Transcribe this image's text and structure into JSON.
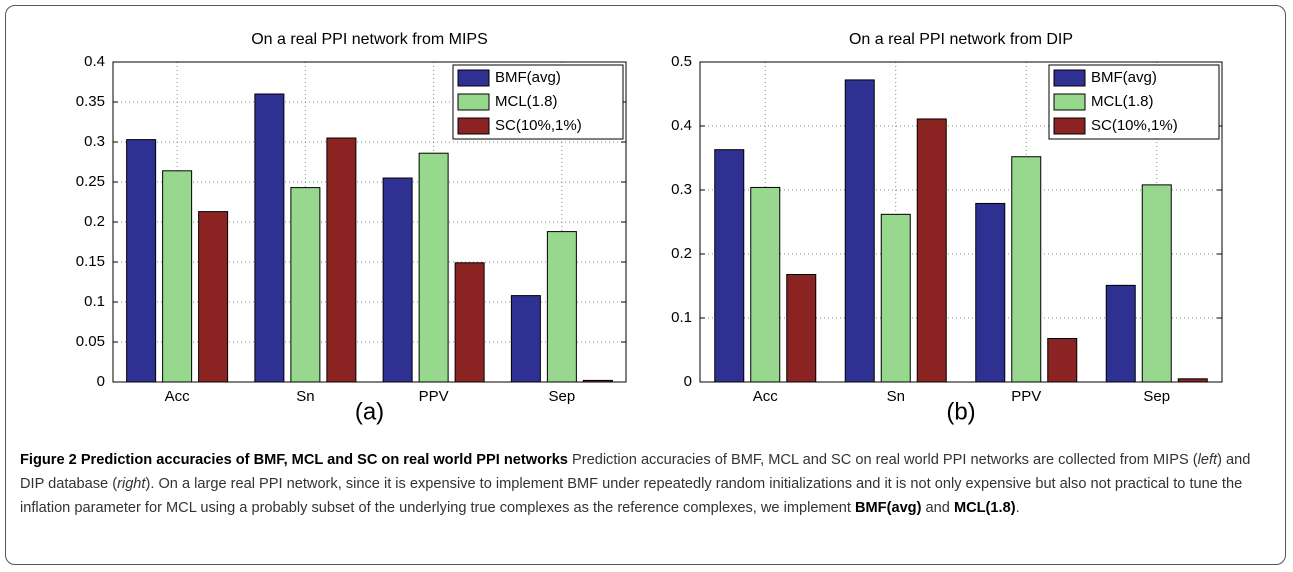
{
  "chart_data": [
    {
      "type": "bar",
      "title": "On a real PPI network from MIPS",
      "panel_label": "(a)",
      "categories": [
        "Acc",
        "Sn",
        "PPV",
        "Sep"
      ],
      "series": [
        {
          "name": "BMF(avg)",
          "color": "#2e3192",
          "values": [
            0.303,
            0.36,
            0.255,
            0.108
          ]
        },
        {
          "name": "MCL(1.8)",
          "color": "#98d88e",
          "values": [
            0.264,
            0.243,
            0.286,
            0.188
          ]
        },
        {
          "name": "SC(10%,1%)",
          "color": "#8b2323",
          "values": [
            0.213,
            0.305,
            0.149,
            0.002
          ]
        }
      ],
      "ylim": [
        0,
        0.4
      ],
      "yticks": [
        0,
        0.05,
        0.1,
        0.15,
        0.2,
        0.25,
        0.3,
        0.35,
        0.4
      ],
      "grid": true,
      "legend": "upper right"
    },
    {
      "type": "bar",
      "title": "On a real PPI network from DIP",
      "panel_label": "(b)",
      "categories": [
        "Acc",
        "Sn",
        "PPV",
        "Sep"
      ],
      "series": [
        {
          "name": "BMF(avg)",
          "color": "#2e3192",
          "values": [
            0.363,
            0.472,
            0.279,
            0.151
          ]
        },
        {
          "name": "MCL(1.8)",
          "color": "#98d88e",
          "values": [
            0.304,
            0.262,
            0.352,
            0.308
          ]
        },
        {
          "name": "SC(10%,1%)",
          "color": "#8b2323",
          "values": [
            0.168,
            0.411,
            0.068,
            0.005
          ]
        }
      ],
      "ylim": [
        0,
        0.5
      ],
      "yticks": [
        0,
        0.1,
        0.2,
        0.3,
        0.4,
        0.5
      ],
      "grid": true,
      "legend": "upper right"
    }
  ],
  "caption": [
    "Figure 2 Prediction accuracies of BMF, MCL and SC on real world PPI networks",
    " Prediction accuracies of BMF, MCL and SC on real world PPI networks are collected from MIPS (",
    "left",
    ") and DIP database (",
    "right",
    "). On a large real PPI network, since it is expensive to implement BMF under repeatedly random initializations and it is not only expensive but also not practical to tune the inflation parameter for MCL using a probably subset of the underlying true complexes as the reference complexes, we implement ",
    "BMF(avg)",
    " and ",
    "MCL(1.8)",
    "."
  ]
}
